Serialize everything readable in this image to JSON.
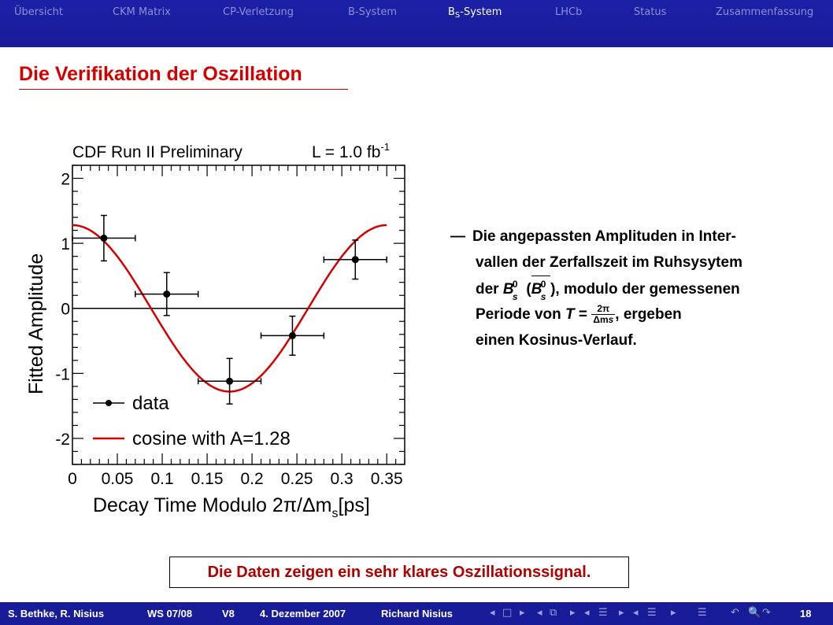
{
  "nav": {
    "items": [
      {
        "label": "Übersicht"
      },
      {
        "label": "CKM Matrix"
      },
      {
        "label": "CP-Verletzung"
      },
      {
        "label": "B-System"
      },
      {
        "label_main": "B",
        "label_sub": "S",
        "label_rest": "-System"
      },
      {
        "label": "LHCb"
      },
      {
        "label": "Status"
      },
      {
        "label": "Zusammenfassung"
      }
    ],
    "active_index": 4,
    "bar_color": "#1a1ea0"
  },
  "slide": {
    "title": "Die Verifikation der Oszillation",
    "title_color": "#d40000"
  },
  "chart_data": {
    "type": "scatter",
    "title_left": "CDF Run II Preliminary",
    "title_right_main": "L = 1.0 fb",
    "title_right_sup": "-1",
    "xlabel_main": "Decay Time Modulo 2π/Δm",
    "xlabel_sub": "s",
    "xlabel_unit": "[ps]",
    "ylabel": "Fitted Amplitude",
    "xlim": [
      0,
      0.37
    ],
    "ylim": [
      -2.4,
      2.2
    ],
    "xticks": [
      "0",
      "0.05",
      "0.1",
      "0.15",
      "0.2",
      "0.25",
      "0.3",
      "0.35"
    ],
    "xtick_values": [
      0,
      0.05,
      0.1,
      0.15,
      0.2,
      0.25,
      0.3,
      0.35
    ],
    "yticks": [
      "2",
      "1",
      "0",
      "-1",
      "-2"
    ],
    "ytick_values": [
      2,
      1,
      0,
      -1,
      -2
    ],
    "series": [
      {
        "name": "data",
        "type": "scatter",
        "x": [
          0.035,
          0.105,
          0.175,
          0.245,
          0.315
        ],
        "y": [
          1.08,
          0.22,
          -1.12,
          -0.42,
          0.75
        ],
        "xerr": [
          0.035,
          0.035,
          0.035,
          0.035,
          0.035
        ],
        "yerr": [
          0.35,
          0.33,
          0.35,
          0.3,
          0.3
        ],
        "color": "#000000"
      },
      {
        "name": "cosine with A=1.28",
        "type": "line",
        "amplitude": 1.28,
        "period": 0.35,
        "color": "#d40000"
      }
    ],
    "legend": {
      "placement": "bottom-left"
    },
    "zero_line": true
  },
  "bullet": {
    "dash": "—",
    "line1": "Die angepassten Amplituden in Inter-",
    "line2": "vallen der Zerfallszeit im Ruhsysytem",
    "line3_pre": "der ",
    "line3_post": ", modulo der gemessenen",
    "bs_base": "B",
    "bs_sup": "0",
    "bs_sub": "s",
    "line4_pre": "Periode von ",
    "line4_T": "T",
    "line4_eq": "=",
    "frac_num": "2π",
    "frac_den": "Δm",
    "frac_den_sub": "s",
    "line4_post": ", ergeben",
    "line5": "einen Kosinus-Verlauf."
  },
  "conclusion": "Die Daten zeigen ein sehr klares Oszillationssignal.",
  "footer": {
    "authors": "S. Bethke, R. Nisius",
    "semester": "WS 07/08",
    "lecture": "V8",
    "date": "4. Dezember 2007",
    "speaker": "Richard Nisius",
    "page": "18",
    "nav_symbols": [
      "◂",
      "□",
      "▸",
      "◂",
      "⧉",
      "▸",
      "◂",
      "☰",
      "▸",
      "◂",
      "☰",
      "▸",
      "☰",
      "↶",
      "🔍",
      "↷"
    ]
  }
}
